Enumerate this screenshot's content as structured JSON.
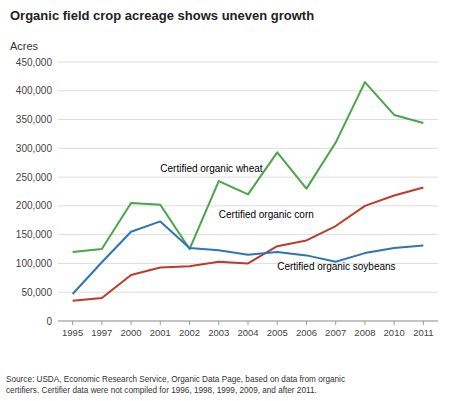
{
  "chart_data": {
    "type": "line",
    "title": "Organic field crop acreage shows uneven growth",
    "ylabel": "Acres",
    "categories": [
      "1995",
      "1997",
      "2000",
      "2001",
      "2002",
      "2003",
      "2004",
      "2005",
      "2006",
      "2007",
      "2008",
      "2010",
      "2011"
    ],
    "series": [
      {
        "color": "#4aa548",
        "values": [
          120000,
          125000,
          205000,
          202000,
          125000,
          243000,
          220000,
          293000,
          230000,
          310000,
          415000,
          358000,
          344000
        ]
      },
      {
        "color": "#c0392b",
        "values": [
          35000,
          40000,
          80000,
          93000,
          95000,
          103000,
          100000,
          130000,
          140000,
          165000,
          200000,
          218000,
          232000
        ]
      },
      {
        "color": "#2e75b6",
        "values": [
          47000,
          102000,
          155000,
          173000,
          127000,
          123000,
          115000,
          120000,
          114000,
          103000,
          118000,
          127000,
          131000
        ]
      }
    ],
    "annotations": [
      {
        "text": "Certified organic wheat",
        "x": "2001",
        "y": 255000
      },
      {
        "text": "Certified organic corn",
        "x": "2003",
        "y": 175000
      },
      {
        "text": "Certified organic soybeans",
        "x": "2005",
        "y": 85000
      },
      {
        "text": "Source: USDA, Economic Research Service, Organic Data Page, based on data from organic\ncertifiers. Certifier data were not compiled for 1996, 1998, 1999, 2009, and after 2011."
      }
    ],
    "ylim": [
      0,
      450000
    ],
    "yticks": [
      0,
      {
        "value": 50000,
        "label": "50,000"
      },
      {
        "value": 100000,
        "label": "100,000"
      },
      {
        "value": 150000,
        "label": "150,000"
      },
      {
        "value": 200000,
        "label": "200,000"
      },
      {
        "value": 250000,
        "label": "250,000"
      },
      {
        "value": 300000,
        "label": "300,000"
      },
      {
        "value": 350000,
        "label": "350,000"
      },
      {
        "value": 400000,
        "label": "400,000"
      },
      {
        "value": 450000,
        "label": "450,000"
      }
    ],
    "grid": true
  }
}
